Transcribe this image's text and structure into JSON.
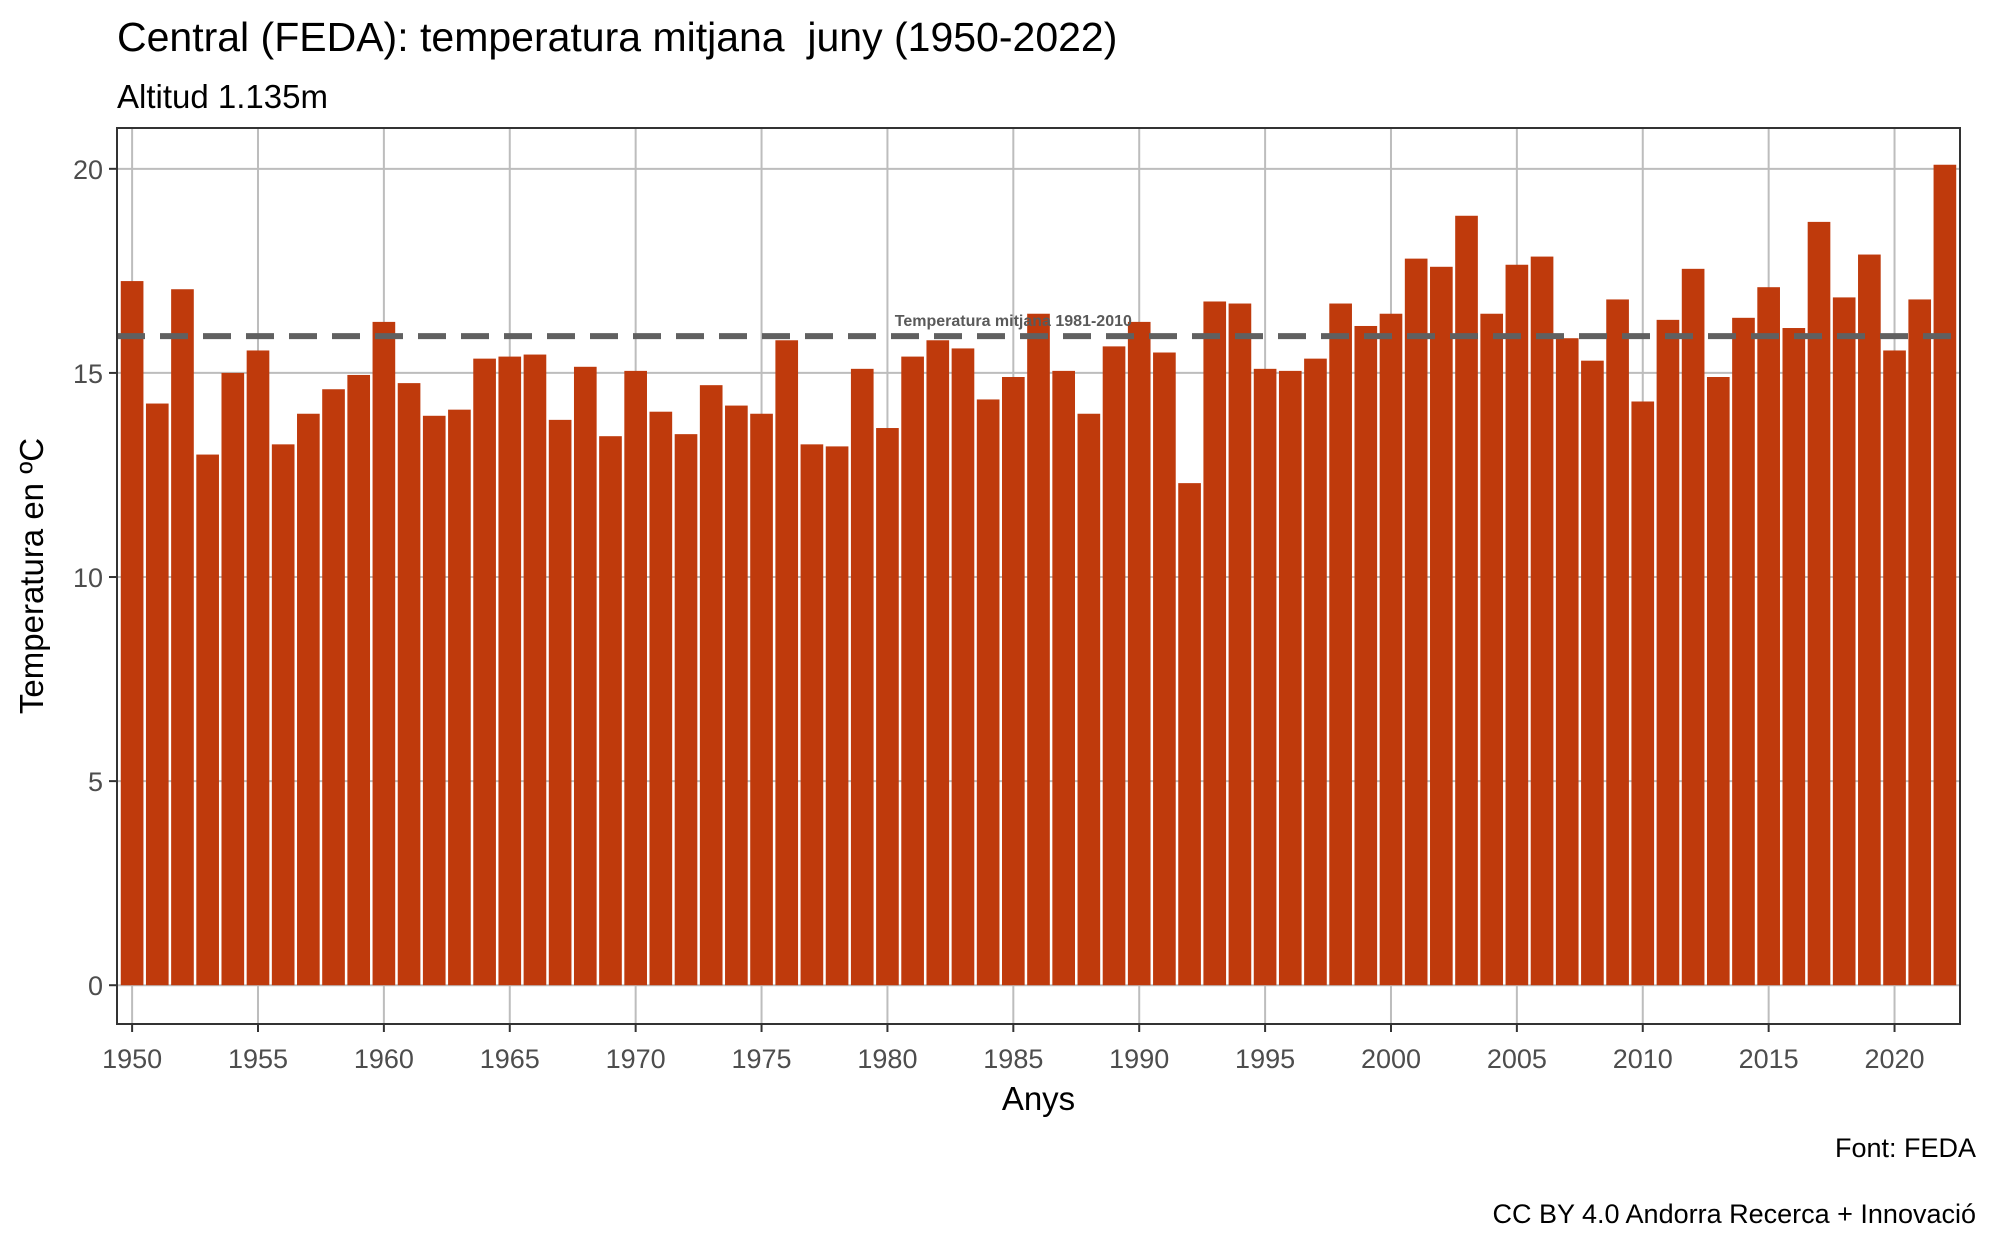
{
  "chart_data": {
    "type": "bar",
    "title": "Central (FEDA): temperatura mitjana  juny (1950-2022)",
    "subtitle": "Altitud 1.135m",
    "xlabel": "Anys",
    "ylabel": "Temperatura en ºC",
    "captions": [
      "Font: FEDA",
      "CC BY 4.0 Andorra Recerca + Innovació"
    ],
    "x": [
      1950,
      1951,
      1952,
      1953,
      1954,
      1955,
      1956,
      1957,
      1958,
      1959,
      1960,
      1961,
      1962,
      1963,
      1964,
      1965,
      1966,
      1967,
      1968,
      1969,
      1970,
      1971,
      1972,
      1973,
      1974,
      1975,
      1976,
      1977,
      1978,
      1979,
      1980,
      1981,
      1982,
      1983,
      1984,
      1985,
      1986,
      1987,
      1988,
      1989,
      1990,
      1991,
      1992,
      1993,
      1994,
      1995,
      1996,
      1997,
      1998,
      1999,
      2000,
      2001,
      2002,
      2003,
      2004,
      2005,
      2006,
      2007,
      2008,
      2009,
      2010,
      2011,
      2012,
      2013,
      2014,
      2015,
      2016,
      2017,
      2018,
      2019,
      2020,
      2021,
      2022
    ],
    "values": [
      17.25,
      14.25,
      17.05,
      13.0,
      15.0,
      15.55,
      13.25,
      14.0,
      14.6,
      14.95,
      16.25,
      14.75,
      13.95,
      14.1,
      15.35,
      15.4,
      15.45,
      13.85,
      15.15,
      13.45,
      15.05,
      14.05,
      13.5,
      14.7,
      14.2,
      14.0,
      15.8,
      13.25,
      13.2,
      15.1,
      13.65,
      15.4,
      15.8,
      15.6,
      14.35,
      14.9,
      16.45,
      15.05,
      14.0,
      15.65,
      16.25,
      15.5,
      12.3,
      16.75,
      16.7,
      15.1,
      15.05,
      15.35,
      16.7,
      16.15,
      16.45,
      17.8,
      17.6,
      18.85,
      16.45,
      17.65,
      17.85,
      15.85,
      15.3,
      16.8,
      14.3,
      16.3,
      17.55,
      14.9,
      16.35,
      17.1,
      16.1,
      18.7,
      16.85,
      17.9,
      15.55,
      16.8,
      20.1
    ],
    "xticks": [
      1950,
      1955,
      1960,
      1965,
      1970,
      1975,
      1980,
      1985,
      1990,
      1995,
      2000,
      2005,
      2010,
      2015,
      2020
    ],
    "yticks": [
      0,
      5,
      10,
      15,
      20
    ],
    "xlim": [
      1949.4,
      2022.6
    ],
    "ylim": [
      -0.95,
      21.0
    ],
    "reference_line": {
      "value": 15.9,
      "label": "Temperatura mitjana 1981-2010",
      "style": "dashed"
    },
    "grid": true,
    "colors": {
      "bar": "#bf3a0c",
      "grid": "#bdbdbd",
      "panel_border": "#333333",
      "reference_line": "#606060"
    }
  }
}
